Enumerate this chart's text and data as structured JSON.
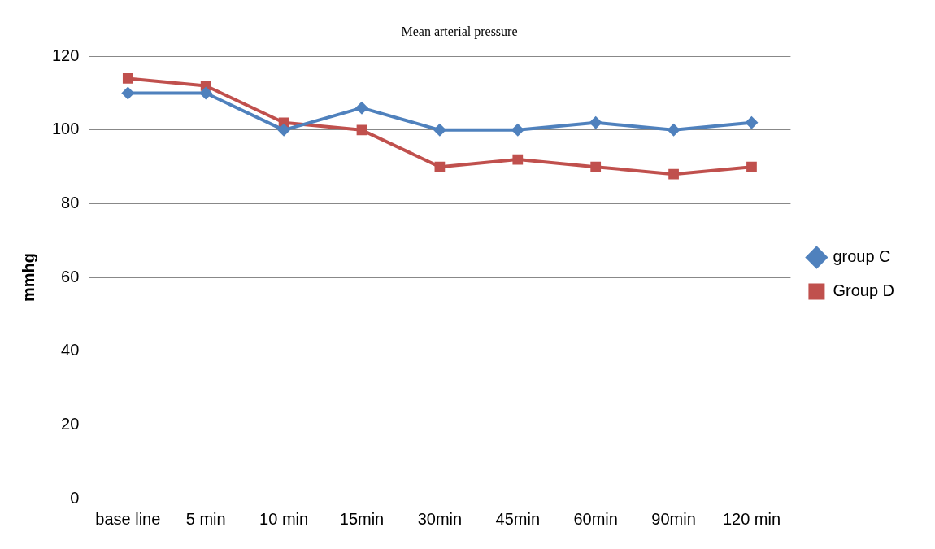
{
  "chart_data": {
    "type": "line",
    "title": "Mean arterial pressure",
    "ylabel": "mmhg",
    "categories": [
      "base line",
      "5 min",
      "10 min",
      "15min",
      "30min",
      "45min",
      "60min",
      "90min",
      "120 min"
    ],
    "series": [
      {
        "name": "group C",
        "color": "#4f81bd",
        "marker": "diamond",
        "values": [
          110,
          110,
          100,
          106,
          100,
          100,
          102,
          100,
          102
        ]
      },
      {
        "name": "Group D",
        "color": "#c0504d",
        "marker": "square",
        "values": [
          114,
          112,
          102,
          100,
          90,
          92,
          90,
          88,
          90
        ]
      }
    ],
    "ylim": [
      0,
      120
    ],
    "yticks": [
      0,
      20,
      40,
      60,
      80,
      100,
      120
    ],
    "grid": "y",
    "legend": "right",
    "line_style": "solid"
  }
}
